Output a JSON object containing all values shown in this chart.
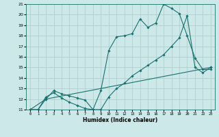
{
  "title": "",
  "xlabel": "Humidex (Indice chaleur)",
  "bg_color": "#cce8e8",
  "grid_color": "#aacccc",
  "line_color": "#1a7070",
  "xlim": [
    -0.5,
    23.5
  ],
  "ylim": [
    11,
    21
  ],
  "x_ticks": [
    0,
    1,
    2,
    3,
    4,
    5,
    6,
    7,
    8,
    9,
    10,
    11,
    12,
    13,
    14,
    15,
    16,
    17,
    18,
    19,
    20,
    21,
    22,
    23
  ],
  "y_ticks": [
    11,
    12,
    13,
    14,
    15,
    16,
    17,
    18,
    19,
    20,
    21
  ],
  "series1_x": [
    0,
    1,
    2,
    3,
    4,
    5,
    6,
    7,
    8,
    9,
    10,
    11,
    12,
    13,
    14,
    15,
    16,
    17,
    18,
    19,
    20,
    21,
    22,
    23
  ],
  "series1_y": [
    11.0,
    11.0,
    12.2,
    12.6,
    12.1,
    11.7,
    11.4,
    11.1,
    11.0,
    12.8,
    16.6,
    17.9,
    18.0,
    18.2,
    19.6,
    18.8,
    19.2,
    21.0,
    20.6,
    20.1,
    18.0,
    15.9,
    14.8,
    14.8
  ],
  "series2_x": [
    0,
    1,
    2,
    3,
    4,
    5,
    6,
    7,
    8,
    9,
    10,
    11,
    12,
    13,
    14,
    15,
    16,
    17,
    18,
    19,
    20,
    21,
    22,
    23
  ],
  "series2_y": [
    11.0,
    11.0,
    12.0,
    12.8,
    12.5,
    12.3,
    12.1,
    11.9,
    11.0,
    11.0,
    12.2,
    13.0,
    13.5,
    14.2,
    14.7,
    15.2,
    15.7,
    16.2,
    17.0,
    17.8,
    19.9,
    15.0,
    14.5,
    15.0
  ],
  "series3_x": [
    0,
    2,
    23
  ],
  "series3_y": [
    11.0,
    12.0,
    15.0
  ]
}
